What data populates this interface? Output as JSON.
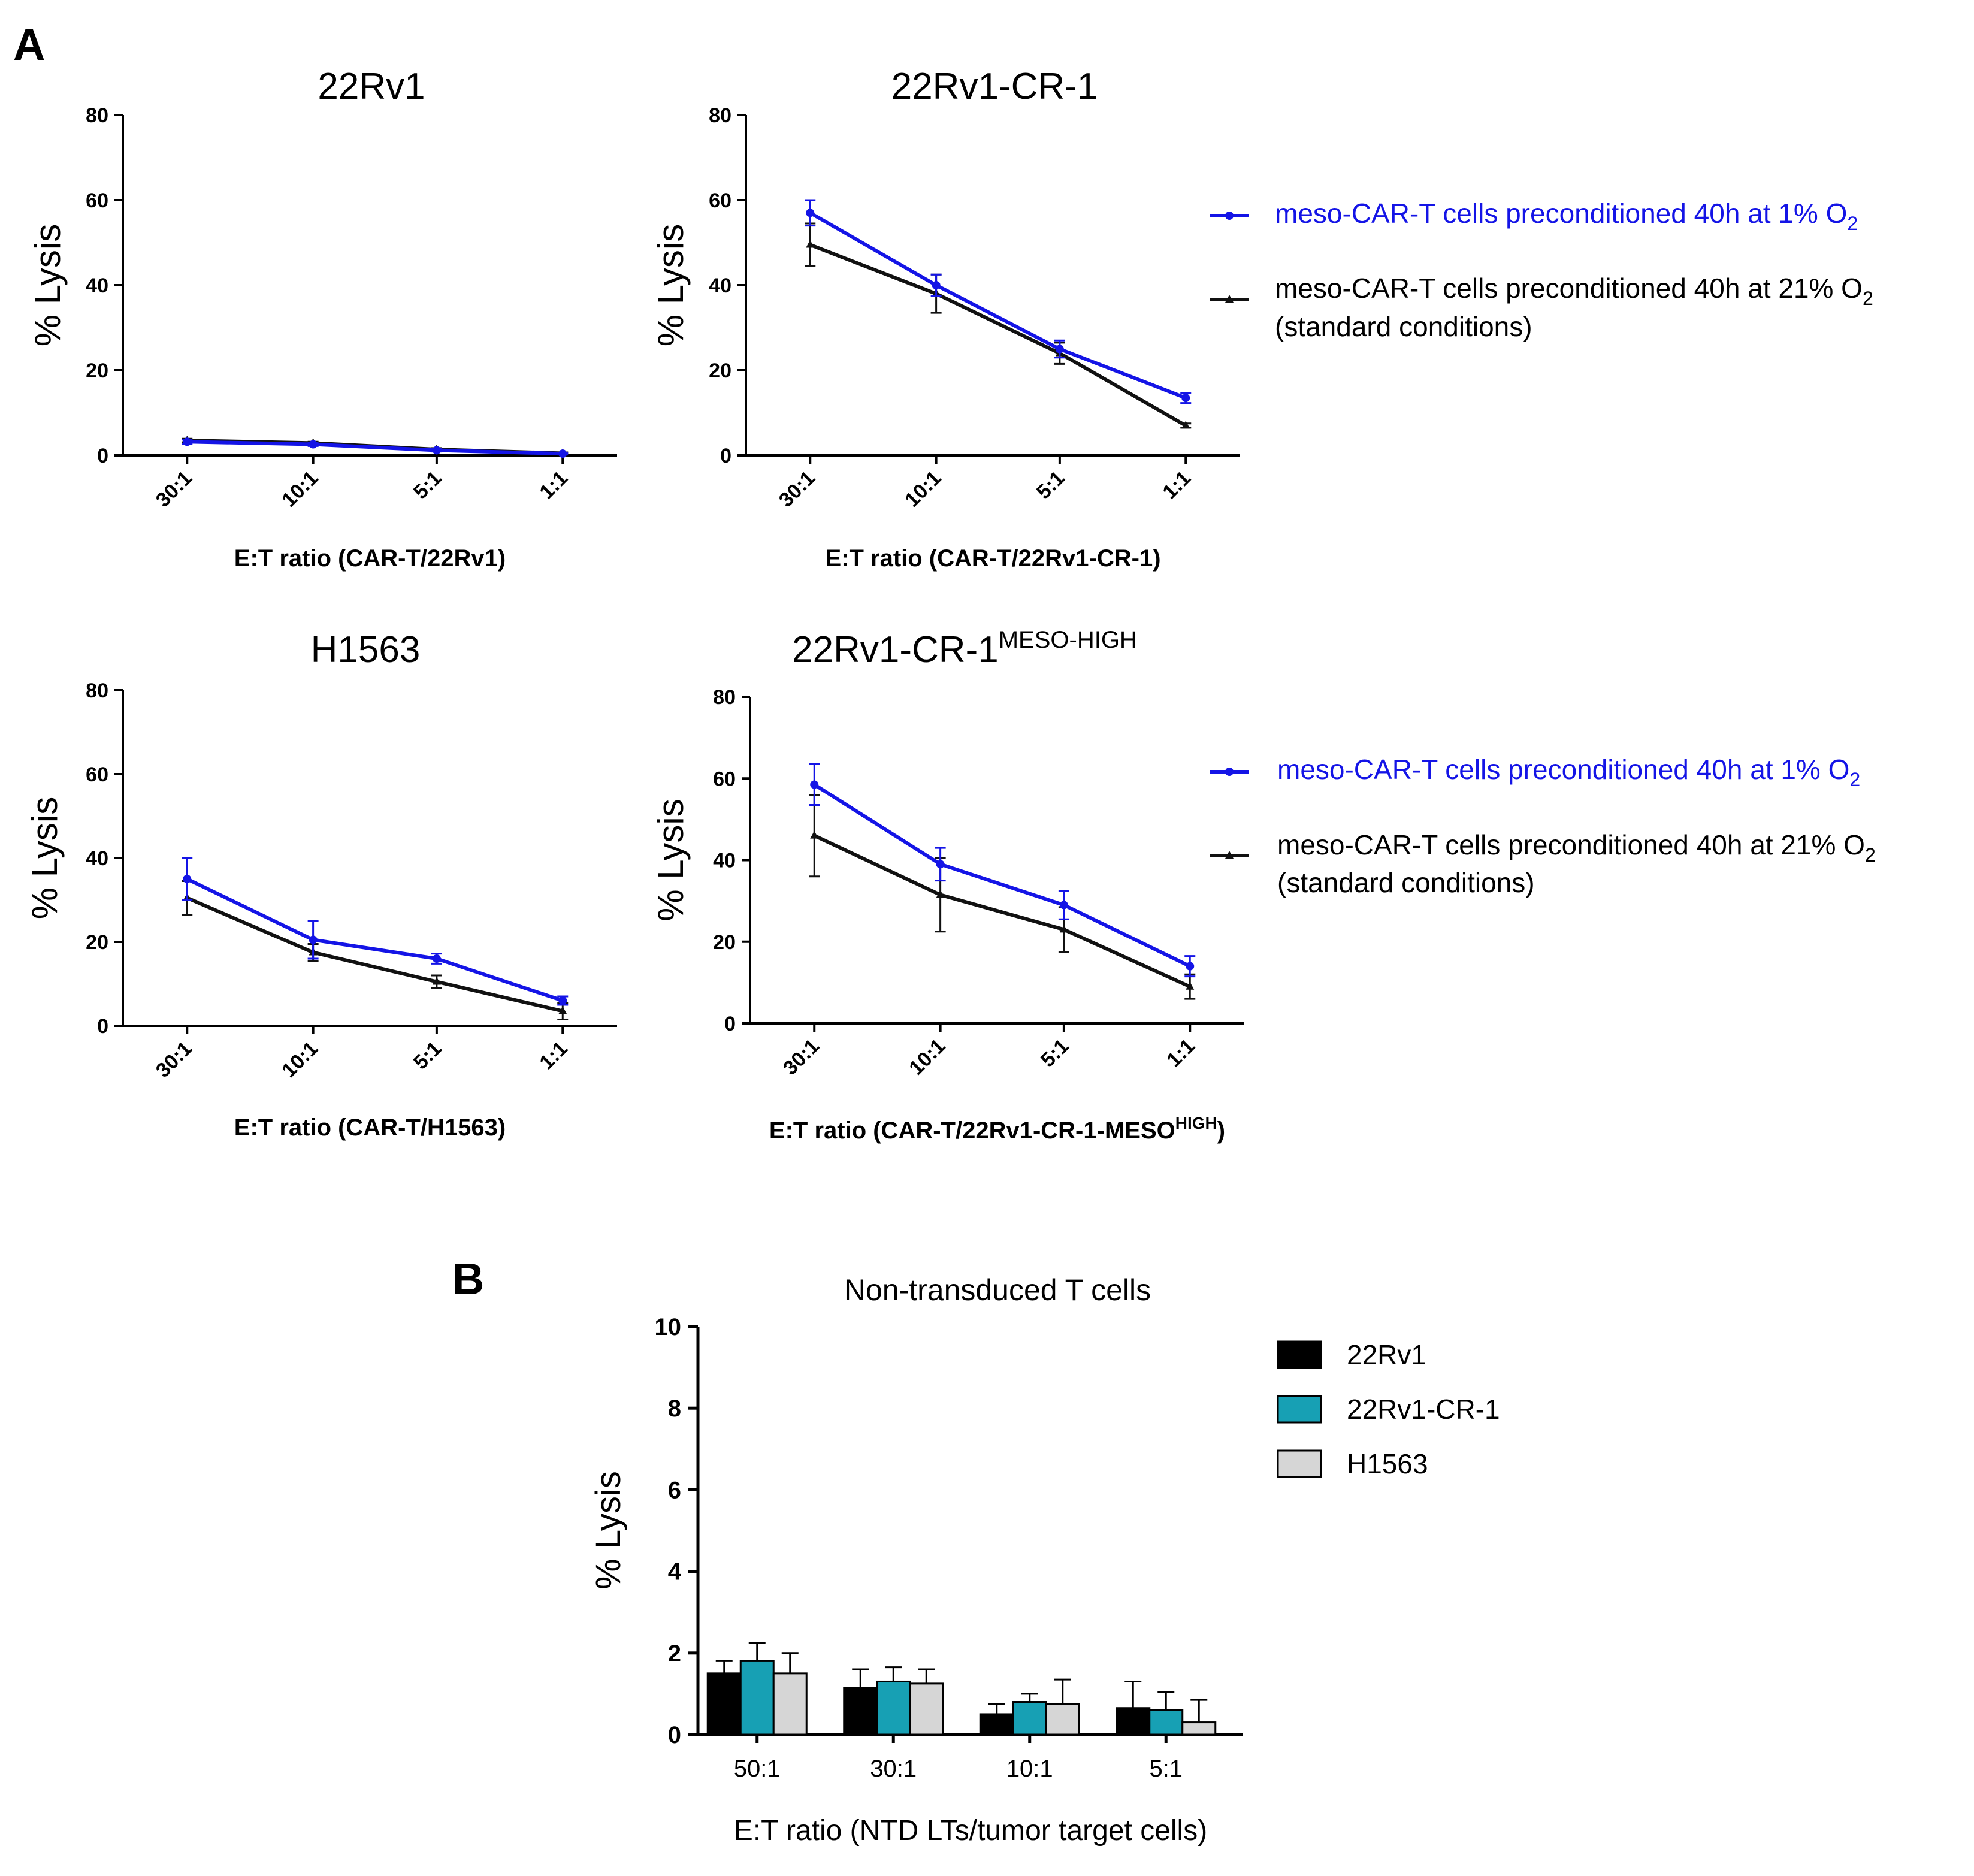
{
  "panels": {
    "a": "A",
    "b": "B"
  },
  "colors": {
    "hypoxia": "#1414e6",
    "standard": "#111111",
    "bar_22Rv1": "#000000",
    "bar_22Rv1_CR_1": "#17a0b4",
    "bar_H1563": "#d6d6d6"
  },
  "legend_top": {
    "hypoxia": {
      "main": "meso-CAR-T cells preconditioned 40h at 1% O",
      "sub": "2"
    },
    "standard": {
      "main": "meso-CAR-T cells preconditioned 40h at 21% O",
      "sub": "2",
      "line2": "(standard conditions)"
    }
  },
  "legend_bottom": {
    "hypoxia": {
      "main": "meso-CAR-T cells preconditioned 40h at 1% O",
      "sub": "2"
    },
    "standard": {
      "main": "meso-CAR-T cells preconditioned 40h at 21% O",
      "sub": "2",
      "line2": "(standard conditions)"
    }
  },
  "chart_data": [
    {
      "type": "line",
      "title": "22Rv1",
      "xlabel": "E:T ratio (CAR-T/22Rv1)",
      "ylabel": "% Lysis",
      "categories": [
        "30:1",
        "10:1",
        "5:1",
        "1:1"
      ],
      "ylim": [
        0,
        80
      ],
      "yticks": [
        "0",
        "20",
        "40",
        "60",
        "80"
      ],
      "series": [
        {
          "name": "meso-CAR-T cells preconditioned 40h at 1% O2",
          "color": "#1414e6",
          "values": [
            3.2,
            2.6,
            1.2,
            0.4
          ],
          "errors": [
            0.5,
            0.4,
            0.3,
            0.2
          ]
        },
        {
          "name": "meso-CAR-T cells preconditioned 40h at 21% O2 (standard conditions)",
          "color": "#111111",
          "values": [
            3.5,
            2.9,
            1.4,
            0.5
          ],
          "errors": [
            0.4,
            0.3,
            0.3,
            0.2
          ]
        }
      ]
    },
    {
      "type": "line",
      "title": "22Rv1-CR-1",
      "xlabel": "E:T ratio (CAR-T/22Rv1-CR-1)",
      "ylabel": "% Lysis",
      "categories": [
        "30:1",
        "10:1",
        "5:1",
        "1:1"
      ],
      "ylim": [
        0,
        80
      ],
      "yticks": [
        "0",
        "20",
        "40",
        "60",
        "80"
      ],
      "series": [
        {
          "name": "meso-CAR-T cells preconditioned 40h at 1% O2",
          "color": "#1414e6",
          "values": [
            57,
            40,
            25,
            13.5
          ],
          "errors": [
            3,
            2.5,
            2,
            1.2
          ]
        },
        {
          "name": "meso-CAR-T cells preconditioned 40h at 21% O2 (standard conditions)",
          "color": "#111111",
          "values": [
            49.5,
            38,
            24,
            7
          ],
          "errors": [
            5,
            4.5,
            2.5,
            0.5
          ]
        }
      ]
    },
    {
      "type": "line",
      "title": "H1563",
      "xlabel": "E:T ratio (CAR-T/H1563)",
      "ylabel": "% Lysis",
      "categories": [
        "30:1",
        "10:1",
        "5:1",
        "1:1"
      ],
      "ylim": [
        0,
        80
      ],
      "yticks": [
        "0",
        "20",
        "40",
        "60",
        "80"
      ],
      "series": [
        {
          "name": "meso-CAR-T cells preconditioned 40h at 1% O2",
          "color": "#1414e6",
          "values": [
            35,
            20.5,
            16,
            6
          ],
          "errors": [
            5,
            4.5,
            1.2,
            1
          ]
        },
        {
          "name": "meso-CAR-T cells preconditioned 40h at 21% O2 (standard conditions)",
          "color": "#111111",
          "values": [
            30.5,
            17.5,
            10.5,
            3.5
          ],
          "errors": [
            4,
            2,
            1.5,
            2
          ]
        }
      ]
    },
    {
      "type": "line",
      "title": "22Rv1-CR-1",
      "title_sup": "MESO-HIGH",
      "xlabel": "E:T ratio (CAR-T/22Rv1-CR-1-MESO",
      "xlabel_sup": "HIGH",
      "xlabel_end": ")",
      "ylabel": "% Lysis",
      "categories": [
        "30:1",
        "10:1",
        "5:1",
        "1:1"
      ],
      "ylim": [
        0,
        80
      ],
      "yticks": [
        "0",
        "20",
        "40",
        "60",
        "80"
      ],
      "series": [
        {
          "name": "meso-CAR-T cells preconditioned 40h at 1% O2",
          "color": "#1414e6",
          "values": [
            58.5,
            39,
            29,
            14
          ],
          "errors": [
            5,
            4,
            3.5,
            2.5
          ]
        },
        {
          "name": "meso-CAR-T cells preconditioned 40h at 21% O2 (standard conditions)",
          "color": "#111111",
          "values": [
            46,
            31.5,
            23,
            9
          ],
          "errors": [
            10,
            9,
            5.5,
            3
          ]
        }
      ]
    },
    {
      "type": "bar",
      "title": "Non-transduced T cells",
      "xlabel": "E:T ratio (NTD LTs/tumor target cells)",
      "ylabel": "% Lysis",
      "categories": [
        "50:1",
        "30:1",
        "10:1",
        "5:1"
      ],
      "ylim": [
        0,
        10
      ],
      "yticks": [
        "0",
        "2",
        "4",
        "6",
        "8",
        "10"
      ],
      "series": [
        {
          "name": "22Rv1",
          "color": "#000000",
          "values": [
            1.5,
            1.15,
            0.5,
            0.65
          ],
          "errors": [
            0.3,
            0.45,
            0.25,
            0.65
          ]
        },
        {
          "name": "22Rv1-CR-1",
          "color": "#17a0b4",
          "values": [
            1.8,
            1.3,
            0.8,
            0.6
          ],
          "errors": [
            0.45,
            0.35,
            0.2,
            0.45
          ]
        },
        {
          "name": "H1563",
          "color": "#d6d6d6",
          "values": [
            1.5,
            1.25,
            0.75,
            0.3
          ],
          "errors": [
            0.5,
            0.35,
            0.6,
            0.55
          ]
        }
      ]
    }
  ]
}
